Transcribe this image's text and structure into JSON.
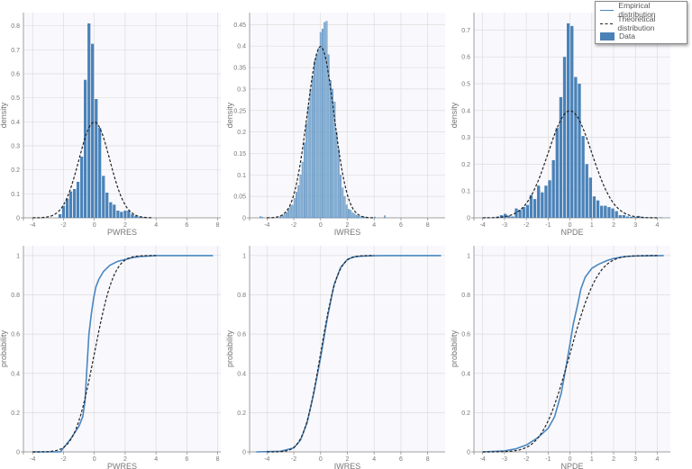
{
  "colors": {
    "bars": "#4a82b8",
    "bars_light": "#8db4d6",
    "empirical": "#4a86c0",
    "theoretical": "#222222",
    "plot_bg": "#f9f9fd",
    "grid": "#dddddd"
  },
  "legend": {
    "placement": "top-right",
    "items": [
      {
        "label": "Empirical distribution",
        "style": "solid-line"
      },
      {
        "label": "Theoretical distribution",
        "style": "dashed-line"
      },
      {
        "label": "Data",
        "style": "bar"
      }
    ]
  },
  "chart_data": [
    {
      "type": "bar",
      "xlabel": "PWRES",
      "ylabel": "density",
      "xlim": [
        -4.6,
        8.2
      ],
      "ylim": [
        0,
        0.855
      ],
      "xticks": [
        -4,
        -2,
        0,
        2,
        4,
        6,
        8
      ],
      "yticks": [
        0,
        0.1,
        0.2,
        0.3,
        0.4,
        0.5,
        0.6,
        0.7,
        0.8
      ],
      "grid": true,
      "bin_width": 0.235,
      "bin_centers": [
        -2.23,
        -2.0,
        -1.76,
        -1.53,
        -1.29,
        -1.06,
        -0.82,
        -0.59,
        -0.35,
        -0.12,
        0.12,
        0.35,
        0.59,
        0.82,
        1.06,
        1.29,
        1.53,
        1.76,
        2.0,
        2.23,
        2.47,
        2.7,
        2.94,
        3.17,
        3.41
      ],
      "values": [
        0.015,
        0.05,
        0.08,
        0.11,
        0.12,
        0.15,
        0.255,
        0.575,
        0.81,
        0.725,
        0.495,
        0.375,
        0.175,
        0.105,
        0.065,
        0.055,
        0.03,
        0.025,
        0.03,
        0.03,
        0.015,
        0.008,
        0.005,
        0.003,
        0.002
      ],
      "theoretical": {
        "distribution": "normal",
        "mean": 0,
        "sd": 1,
        "range": [
          -4,
          3.8
        ]
      }
    },
    {
      "type": "bar",
      "xlabel": "IWRES",
      "ylabel": "density",
      "xlim": [
        -5.3,
        9.3
      ],
      "ylim": [
        0,
        0.478
      ],
      "xticks": [
        -4,
        -2,
        0,
        2,
        4,
        6,
        8
      ],
      "yticks": [
        0,
        0.05,
        0.1,
        0.15,
        0.2,
        0.25,
        0.3,
        0.35,
        0.4,
        0.45
      ],
      "grid": true,
      "bin_width": 0.15,
      "light": true,
      "bin_centers": [
        -4.5,
        -4.35,
        -3.0,
        -2.85,
        -2.7,
        -2.55,
        -2.4,
        -2.25,
        -2.1,
        -1.95,
        -1.8,
        -1.65,
        -1.5,
        -1.35,
        -1.2,
        -1.05,
        -0.9,
        -0.75,
        -0.6,
        -0.45,
        -0.3,
        -0.15,
        0,
        0.15,
        0.3,
        0.45,
        0.6,
        0.75,
        0.9,
        1.05,
        1.2,
        1.35,
        1.5,
        1.65,
        1.8,
        1.95,
        2.1,
        2.25,
        2.4,
        2.55,
        2.7,
        2.85,
        3.0,
        3.15,
        3.3,
        3.45,
        4.05,
        4.8
      ],
      "values": [
        0.003,
        0.002,
        0.003,
        0.005,
        0.008,
        0.012,
        0.02,
        0.028,
        0.03,
        0.045,
        0.06,
        0.075,
        0.1,
        0.13,
        0.175,
        0.22,
        0.26,
        0.3,
        0.33,
        0.365,
        0.38,
        0.395,
        0.432,
        0.44,
        0.455,
        0.458,
        0.38,
        0.32,
        0.3,
        0.27,
        0.2,
        0.16,
        0.1,
        0.07,
        0.05,
        0.03,
        0.02,
        0.018,
        0.012,
        0.009,
        0.006,
        0.004,
        0.003,
        0.002,
        0.002,
        0.001,
        0.002,
        0.005
      ],
      "theoretical": {
        "distribution": "normal",
        "mean": 0,
        "sd": 1,
        "range": [
          -4,
          4
        ]
      }
    },
    {
      "type": "bar",
      "xlabel": "NPDE",
      "ylabel": "density",
      "xlim": [
        -4.4,
        4.6
      ],
      "ylim": [
        0,
        0.765
      ],
      "xticks": [
        -4,
        -3,
        -2,
        -1,
        0,
        1,
        2,
        3,
        4
      ],
      "yticks": [
        0,
        0.1,
        0.2,
        0.3,
        0.4,
        0.5,
        0.6,
        0.7
      ],
      "grid": true,
      "bin_width": 0.17,
      "bin_centers": [
        -3.9,
        -3.48,
        -3.31,
        -3.14,
        -2.97,
        -2.8,
        -2.63,
        -2.46,
        -2.29,
        -2.12,
        -1.95,
        -1.78,
        -1.61,
        -1.44,
        -1.27,
        -1.1,
        -0.93,
        -0.76,
        -0.59,
        -0.42,
        -0.25,
        -0.08,
        0.09,
        0.26,
        0.43,
        0.6,
        0.77,
        0.94,
        1.11,
        1.28,
        1.45,
        1.62,
        1.79,
        1.96,
        2.13,
        2.3,
        2.47,
        2.64,
        2.81,
        2.98,
        3.15,
        3.32,
        3.49,
        3.66,
        3.83,
        4.17
      ],
      "values": [
        0.002,
        0.002,
        0.005,
        0.01,
        0.015,
        0.008,
        0.005,
        0.035,
        0.03,
        0.04,
        0.048,
        0.085,
        0.07,
        0.12,
        0.095,
        0.12,
        0.14,
        0.215,
        0.335,
        0.45,
        0.6,
        0.725,
        0.715,
        0.525,
        0.5,
        0.305,
        0.2,
        0.15,
        0.08,
        0.065,
        0.045,
        0.045,
        0.04,
        0.035,
        0.025,
        0.01,
        0.01,
        0.005,
        0.004,
        0.003,
        0.007,
        0.004,
        0.002,
        0.002,
        0.001,
        0.002
      ],
      "theoretical": {
        "distribution": "normal",
        "mean": 0,
        "sd": 1,
        "range": [
          -4,
          4
        ]
      }
    },
    {
      "type": "line",
      "xlabel": "PWRES",
      "ylabel": "probability",
      "xlim": [
        -4.6,
        8.2
      ],
      "ylim": [
        0,
        1.05
      ],
      "xticks": [
        -4,
        -2,
        0,
        2,
        4,
        6,
        8
      ],
      "yticks": [
        0,
        0.2,
        0.4,
        0.6,
        0.8,
        1
      ],
      "grid": true,
      "empirical": {
        "x": [
          -4,
          -2.2,
          -2,
          -1.5,
          -1,
          -0.75,
          -0.6,
          -0.5,
          -0.35,
          -0.2,
          -0.05,
          0.1,
          0.3,
          0.6,
          1,
          1.5,
          2,
          2.5,
          3,
          4,
          7.7
        ],
        "y": [
          0,
          0,
          0.02,
          0.07,
          0.13,
          0.18,
          0.26,
          0.4,
          0.6,
          0.7,
          0.78,
          0.84,
          0.88,
          0.92,
          0.95,
          0.97,
          0.98,
          0.99,
          0.995,
          1,
          1
        ]
      },
      "theoretical": {
        "distribution": "normal",
        "mean": 0,
        "sd": 1,
        "range": [
          -4,
          4
        ]
      }
    },
    {
      "type": "line",
      "xlabel": "IWRES",
      "ylabel": "probability",
      "xlim": [
        -5.3,
        9.3
      ],
      "ylim": [
        0,
        1.05
      ],
      "xticks": [
        -4,
        -2,
        0,
        2,
        4,
        6,
        8
      ],
      "yticks": [
        0,
        0.2,
        0.4,
        0.6,
        0.8,
        1
      ],
      "grid": true,
      "empirical": {
        "x": [
          -4.8,
          -3,
          -2,
          -1.5,
          -1,
          -0.5,
          0,
          0.5,
          1,
          1.5,
          2,
          2.5,
          3,
          4,
          5,
          9
        ],
        "y": [
          0,
          0.003,
          0.02,
          0.06,
          0.15,
          0.3,
          0.48,
          0.68,
          0.85,
          0.94,
          0.98,
          0.993,
          0.997,
          0.999,
          1,
          1
        ]
      },
      "theoretical": {
        "distribution": "normal",
        "mean": 0,
        "sd": 1,
        "range": [
          -4,
          4
        ]
      }
    },
    {
      "type": "line",
      "xlabel": "NPDE",
      "ylabel": "probability",
      "xlim": [
        -4.4,
        4.6
      ],
      "ylim": [
        0,
        1.05
      ],
      "xticks": [
        -4,
        -3,
        -2,
        -1,
        0,
        1,
        2,
        3,
        4
      ],
      "yticks": [
        0,
        0.2,
        0.4,
        0.6,
        0.8,
        1
      ],
      "grid": true,
      "empirical": {
        "x": [
          -4,
          -3,
          -2.5,
          -2,
          -1.5,
          -1.2,
          -1,
          -0.7,
          -0.4,
          -0.2,
          0,
          0.15,
          0.35,
          0.5,
          0.7,
          1,
          1.3,
          1.7,
          2,
          2.5,
          3,
          4.3
        ],
        "y": [
          0,
          0.005,
          0.015,
          0.035,
          0.07,
          0.1,
          0.12,
          0.18,
          0.3,
          0.42,
          0.55,
          0.65,
          0.75,
          0.83,
          0.89,
          0.935,
          0.955,
          0.975,
          0.985,
          0.995,
          0.998,
          1
        ]
      },
      "theoretical": {
        "distribution": "normal",
        "mean": 0,
        "sd": 1,
        "range": [
          -4,
          4
        ]
      }
    }
  ]
}
